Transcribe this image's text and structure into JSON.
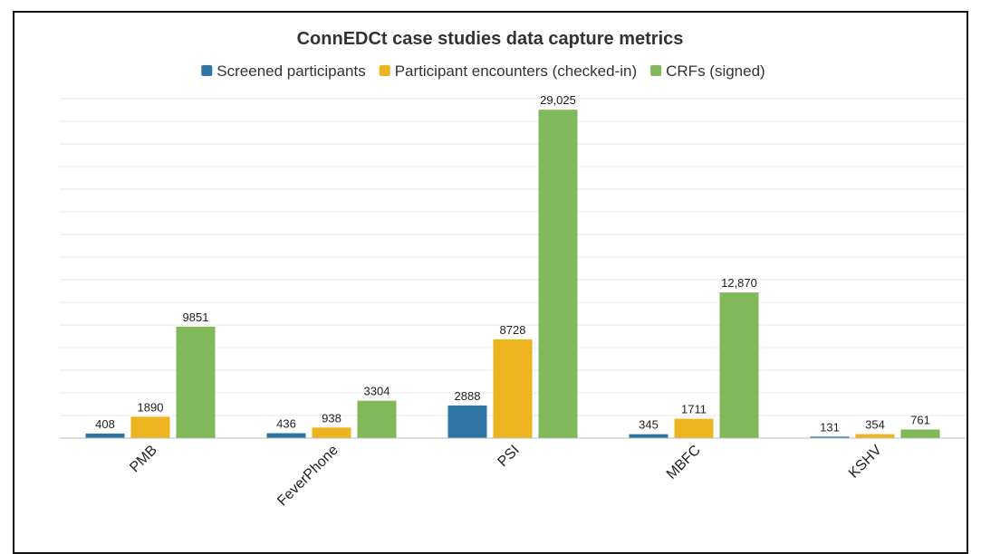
{
  "chart_data": {
    "type": "bar",
    "title": "ConnEDCt case studies data capture metrics",
    "categories": [
      "PMB",
      "FeverPhone",
      "PSI",
      "MBFC",
      "KSHV"
    ],
    "series": [
      {
        "name": "Screened participants",
        "color": "#2e75a3",
        "values": [
          408,
          436,
          2888,
          345,
          131
        ],
        "labels": [
          "408",
          "436",
          "2888",
          "345",
          "131"
        ]
      },
      {
        "name": "Participant encounters (checked-in)",
        "color": "#eeb420",
        "values": [
          1890,
          938,
          8728,
          1711,
          354
        ],
        "labels": [
          "1890",
          "938",
          "8728",
          "1711",
          "354"
        ]
      },
      {
        "name": "CRFs (signed)",
        "color": "#80b85a",
        "values": [
          9851,
          3304,
          29025,
          12870,
          761
        ],
        "labels": [
          "9851",
          "3304",
          "29,025",
          "12,870",
          "761"
        ]
      }
    ],
    "ylim": [
      0,
      30000
    ],
    "grid": true,
    "legend": "top-center"
  }
}
